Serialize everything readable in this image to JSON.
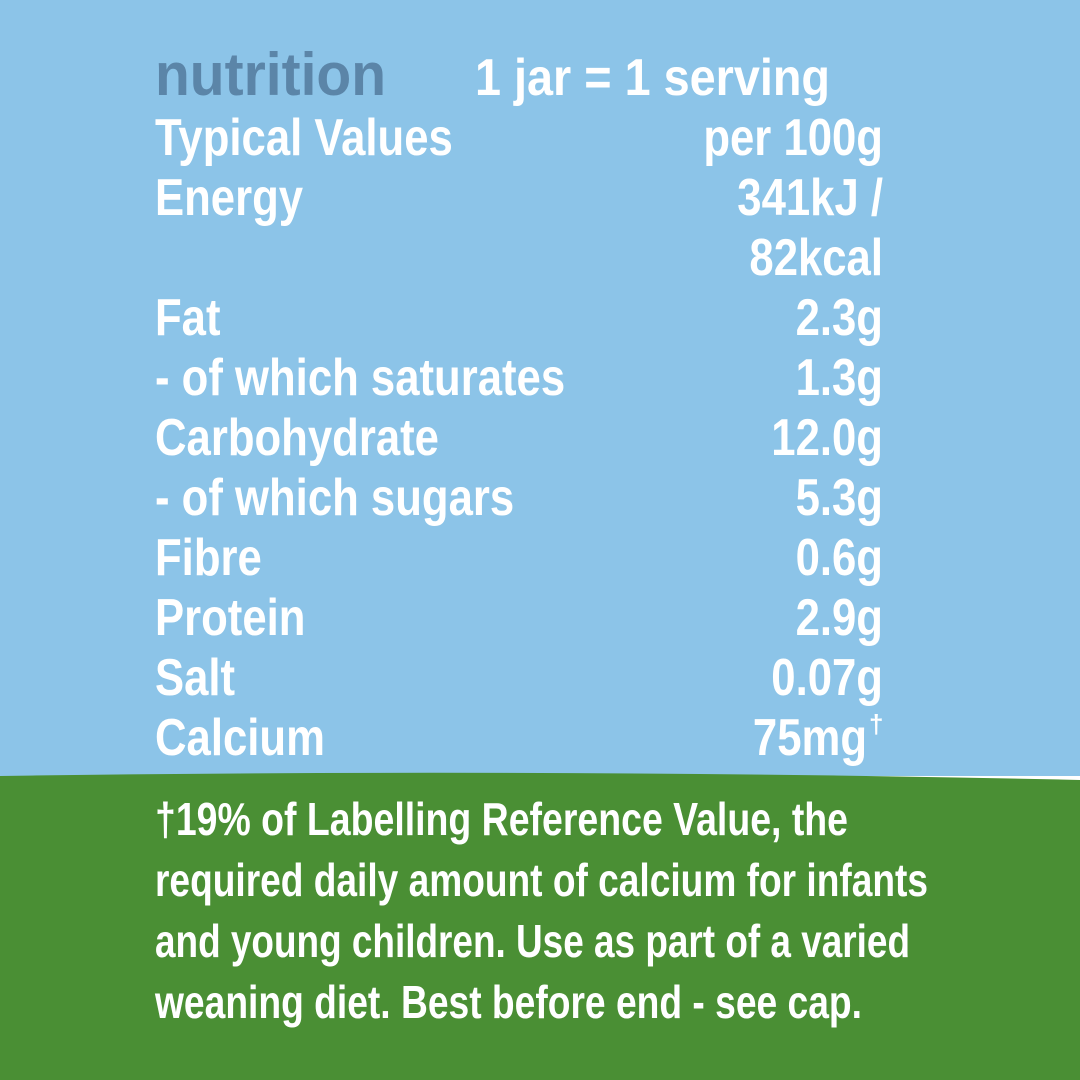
{
  "header": {
    "title": "nutrition",
    "serving": "1 jar = 1 serving"
  },
  "table": {
    "columns": [
      "Typical Values",
      "per 100g"
    ],
    "rows": [
      {
        "label": "Energy",
        "value_lines": [
          "341kJ /",
          "82kcal"
        ]
      },
      {
        "label": "Fat",
        "value": "2.3g"
      },
      {
        "label": "- of which saturates",
        "value": "1.3g"
      },
      {
        "label": "Carbohydrate",
        "value": "12.0g"
      },
      {
        "label": "- of which sugars",
        "value": "5.3g"
      },
      {
        "label": "Fibre",
        "value": "0.6g"
      },
      {
        "label": "Protein",
        "value": "2.9g"
      },
      {
        "label": "Salt",
        "value": "0.07g"
      },
      {
        "label": "Calcium",
        "value": "75mg",
        "marker": "†"
      }
    ]
  },
  "footnote": {
    "lines": [
      "†19% of Labelling Reference Value, the",
      "required daily amount of calcium for infants",
      "and young children. Use as part of a varied",
      "weaning diet. Best before end - see cap."
    ]
  }
}
